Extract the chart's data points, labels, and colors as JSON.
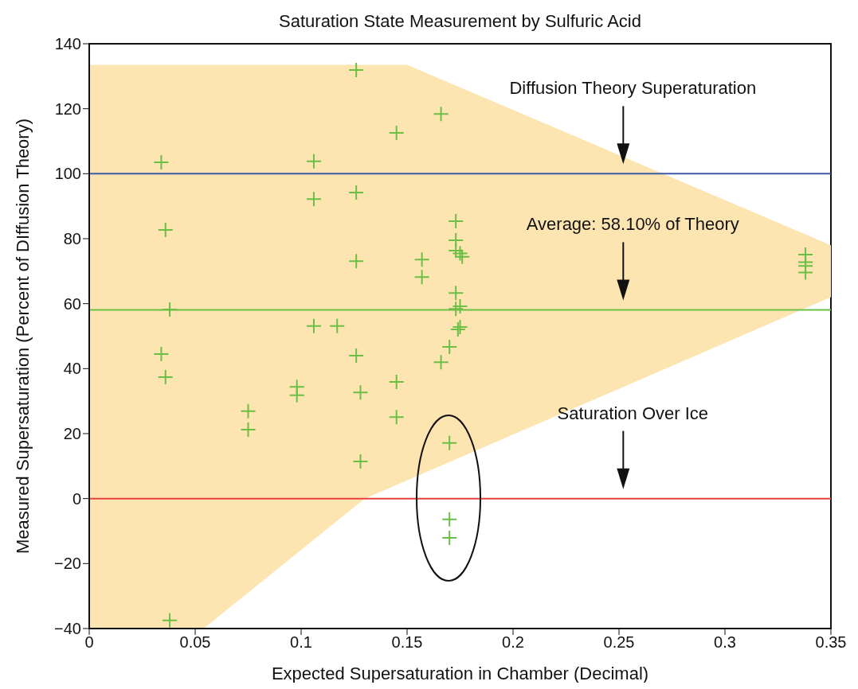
{
  "chart_data": {
    "type": "scatter",
    "title": "Saturation State Measurement by Sulfuric Acid",
    "xlabel": "Expected Supersaturation in Chamber (Decimal)",
    "ylabel": "Measured Supersaturation (Percent of DIffusion Theory)",
    "xlim": [
      0,
      0.35
    ],
    "xticks": [
      0,
      0.05,
      0.1,
      0.15,
      0.2,
      0.25,
      0.3,
      0.35
    ],
    "ylim": [
      -40,
      140
    ],
    "yticks": [
      -40,
      -20,
      0,
      20,
      40,
      60,
      80,
      100,
      120,
      140
    ],
    "grid": false,
    "legend": false,
    "marker": "cross",
    "series": [
      {
        "type": "area",
        "color": "#fde5b1",
        "x": [
          0,
          0.054,
          0.13,
          0.15,
          0.35
        ],
        "values": [
          null,
          null,
          null,
          null,
          null
        ],
        "lower": [
          -40,
          -40,
          0,
          5.6,
          62
        ],
        "upper": [
          133.5,
          133.5,
          133.5,
          133.5,
          78
        ]
      },
      {
        "type": "scatter",
        "color": "#6cbf45",
        "x": [
          0.034,
          0.036,
          0.038,
          0.034,
          0.036,
          0.038,
          0.075,
          0.075,
          0.098,
          0.098,
          0.106,
          0.106,
          0.106,
          0.117,
          0.126,
          0.126,
          0.126,
          0.126,
          0.128,
          0.128,
          0.145,
          0.145,
          0.145,
          0.166,
          0.157,
          0.157,
          0.166,
          0.17,
          0.17,
          0.17,
          0.17,
          0.173,
          0.173,
          0.173,
          0.175,
          0.176,
          0.173,
          0.173,
          0.175,
          0.175,
          0.174,
          0.338,
          0.338,
          0.338,
          0.338
        ],
        "values": [
          103.5,
          82.7,
          58.2,
          44.5,
          37.4,
          -37.5,
          26.9,
          21.2,
          34.4,
          31.8,
          103.8,
          92.2,
          53.1,
          53.1,
          131.9,
          94.2,
          73.1,
          44,
          32.7,
          11.4,
          112.6,
          35.9,
          25.1,
          118.4,
          73.6,
          68.2,
          42,
          46.7,
          17.1,
          -6.4,
          -12.1,
          85.4,
          79.5,
          76.3,
          75.5,
          74.4,
          63.3,
          58.4,
          59.2,
          52.8,
          52.1,
          75.1,
          72.8,
          71.6,
          69.6
        ]
      }
    ],
    "ref_lines": [
      {
        "axis": "y",
        "value": 100,
        "color": "#3e5aa8"
      },
      {
        "axis": "y",
        "value": 58.1,
        "color": "#6cbf45"
      },
      {
        "axis": "y",
        "value": 0,
        "color": "#e8413c"
      }
    ],
    "annotations": [
      "Diffusion Theory Superaturation",
      "Average: 58.10% of Theory",
      "Saturation Over Ice"
    ]
  }
}
